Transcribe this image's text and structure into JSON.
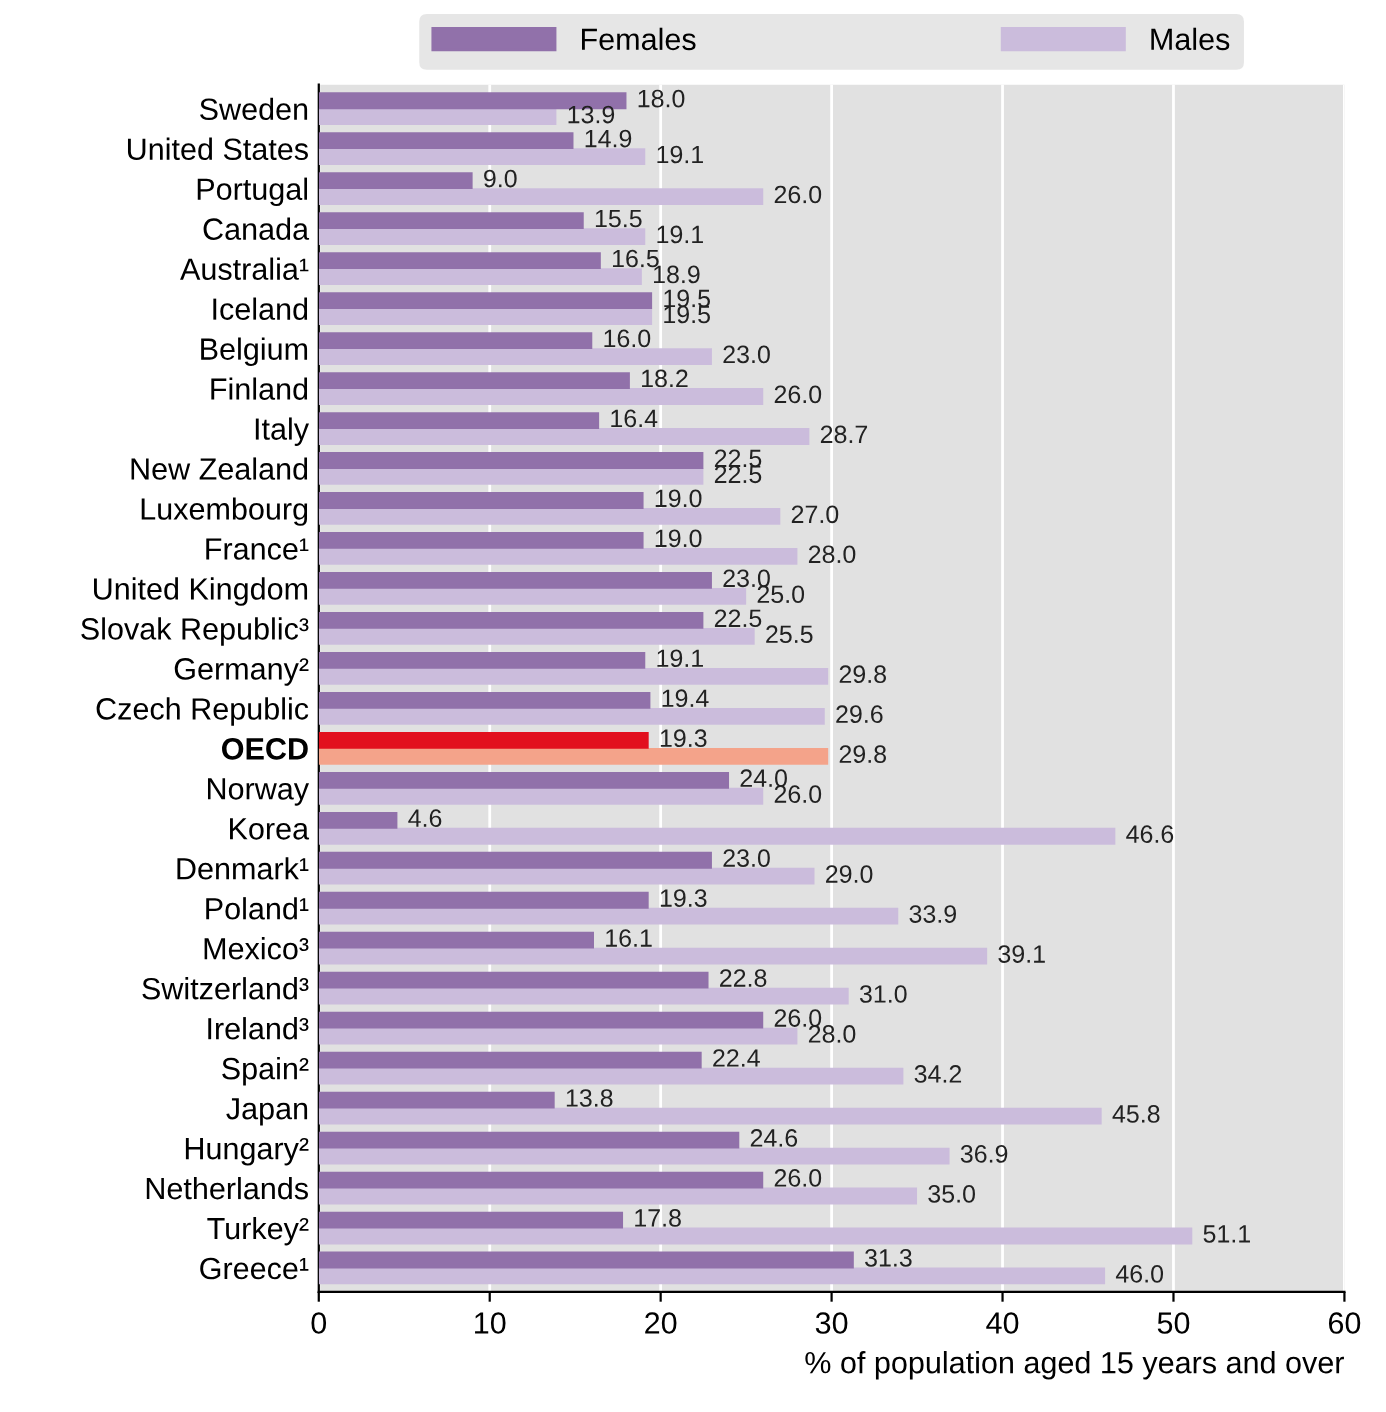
{
  "chart_data": {
    "type": "bar",
    "orientation": "horizontal",
    "xlabel": "% of population aged 15 years and over",
    "categories": [
      "Sweden",
      "United States",
      "Portugal",
      "Canada",
      "Australia¹",
      "Iceland",
      "Belgium",
      "Finland",
      "Italy",
      "New Zealand",
      "Luxembourg",
      "France¹",
      "United Kingdom",
      "Slovak Republic³",
      "Germany²",
      "Czech Republic",
      "OECD",
      "Norway",
      "Korea",
      "Denmark¹",
      "Poland¹",
      "Mexico³",
      "Switzerland³",
      "Ireland³",
      "Spain²",
      "Japan",
      "Hungary²",
      "Netherlands",
      "Turkey²",
      "Greece¹"
    ],
    "series": [
      {
        "name": "Females",
        "color": "#9171aa",
        "colors": [
          "#9171aa",
          "#9171aa",
          "#9171aa",
          "#9171aa",
          "#9171aa",
          "#9171aa",
          "#9171aa",
          "#9171aa",
          "#9171aa",
          "#9171aa",
          "#9171aa",
          "#9171aa",
          "#9171aa",
          "#9171aa",
          "#9171aa",
          "#9171aa",
          "#e2101e",
          "#9171aa",
          "#9171aa",
          "#9171aa",
          "#9171aa",
          "#9171aa",
          "#9171aa",
          "#9171aa",
          "#9171aa",
          "#9171aa",
          "#9171aa",
          "#9171aa",
          "#9171aa",
          "#9171aa"
        ],
        "value_labels": [
          "18.0",
          "14.9",
          "9.0",
          "15.5",
          "16.5",
          "19.5",
          "16.0",
          "18.2",
          "16.4",
          "22.5",
          "19.0",
          "19.0",
          "23.0",
          "22.5",
          "19.1",
          "19.4",
          "19.3",
          "24.0",
          "4.6",
          "23.0",
          "19.3",
          "16.1",
          "22.8",
          "26.0",
          "22.4",
          "13.8",
          "24.6",
          "26.0",
          "17.8",
          "31.3"
        ],
        "values": [
          18.0,
          14.9,
          9.0,
          15.5,
          16.5,
          19.5,
          16.0,
          18.2,
          16.4,
          22.5,
          19.0,
          19.0,
          23.0,
          22.5,
          19.1,
          19.4,
          19.3,
          24.0,
          4.6,
          23.0,
          19.3,
          16.1,
          22.8,
          26.0,
          22.4,
          13.8,
          24.6,
          26.0,
          17.8,
          31.3
        ]
      },
      {
        "name": "Males",
        "color": "#cbbcdc",
        "colors": [
          "#cbbcdc",
          "#cbbcdc",
          "#cbbcdc",
          "#cbbcdc",
          "#cbbcdc",
          "#cbbcdc",
          "#cbbcdc",
          "#cbbcdc",
          "#cbbcdc",
          "#cbbcdc",
          "#cbbcdc",
          "#cbbcdc",
          "#cbbcdc",
          "#cbbcdc",
          "#cbbcdc",
          "#cbbcdc",
          "#f4a38a",
          "#cbbcdc",
          "#cbbcdc",
          "#cbbcdc",
          "#cbbcdc",
          "#cbbcdc",
          "#cbbcdc",
          "#cbbcdc",
          "#cbbcdc",
          "#cbbcdc",
          "#cbbcdc",
          "#cbbcdc",
          "#cbbcdc",
          "#cbbcdc"
        ],
        "value_labels": [
          "13.9",
          "19.1",
          "26.0",
          "19.1",
          "18.9",
          "19.5",
          "23.0",
          "26.0",
          "28.7",
          "22.5",
          "27.0",
          "28.0",
          "25.0",
          "25.5",
          "29.8",
          "29.6",
          "29.8",
          "26.0",
          "46.6",
          "29.0",
          "33.9",
          "39.1",
          "31.0",
          "28.0",
          "34.2",
          "45.8",
          "36.9",
          "35.0",
          "51.1",
          "46.0"
        ],
        "values": [
          13.9,
          19.1,
          26.0,
          19.1,
          18.9,
          19.5,
          23.0,
          26.0,
          28.7,
          22.5,
          27.0,
          28.0,
          25.0,
          25.5,
          29.8,
          29.6,
          29.8,
          26.0,
          46.6,
          29.0,
          33.9,
          39.1,
          31.0,
          28.0,
          34.2,
          45.8,
          36.9,
          35.0,
          51.1,
          46.0
        ]
      }
    ],
    "xlim": [
      0,
      60
    ],
    "xticks": [
      0,
      10,
      20,
      30,
      40,
      50,
      60
    ],
    "grid": "x",
    "legend": "top"
  }
}
